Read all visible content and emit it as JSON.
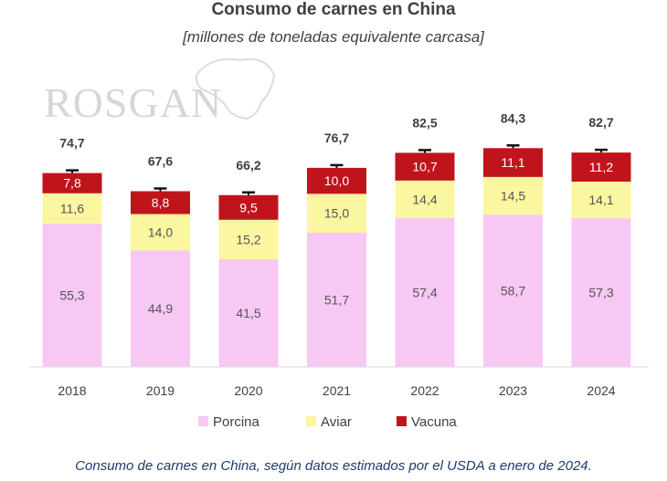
{
  "chart_data": {
    "type": "bar",
    "stacked": true,
    "title": "Consumo de carnes en China",
    "subtitle": "[millones de toneladas equivalente carcasa]",
    "watermark": "ROSGAN",
    "categories": [
      "2018",
      "2019",
      "2020",
      "2021",
      "2022",
      "2023",
      "2024"
    ],
    "series": [
      {
        "name": "Porcina",
        "color": "#f8c8f4",
        "values": [
          55.3,
          44.9,
          41.5,
          51.7,
          57.4,
          58.7,
          57.3
        ],
        "labels": [
          "55,3",
          "44,9",
          "41,5",
          "51,7",
          "57,4",
          "58,7",
          "57,3"
        ]
      },
      {
        "name": "Aviar",
        "color": "#fbf7a0",
        "values": [
          11.6,
          14.0,
          15.2,
          15.0,
          14.4,
          14.5,
          14.1
        ],
        "labels": [
          "11,6",
          "14,0",
          "15,2",
          "15,0",
          "14,4",
          "14,5",
          "14,1"
        ]
      },
      {
        "name": "Vacuna",
        "color": "#c0141c",
        "values": [
          7.8,
          8.8,
          9.5,
          10.0,
          10.7,
          11.1,
          11.2
        ],
        "labels": [
          "7,8",
          "8,8",
          "9,5",
          "10,0",
          "10,7",
          "11,1",
          "11,2"
        ]
      }
    ],
    "totals": [
      74.7,
      67.6,
      66.2,
      76.7,
      82.5,
      84.3,
      82.7
    ],
    "total_labels": [
      "74,7",
      "67,6",
      "66,2",
      "76,7",
      "82,5",
      "84,3",
      "82,7"
    ],
    "ylim": [
      0,
      85
    ],
    "legend_position": "bottom",
    "grid": false
  },
  "caption": "Consumo de carnes en China, según datos estimados por el USDA a enero de 2024."
}
